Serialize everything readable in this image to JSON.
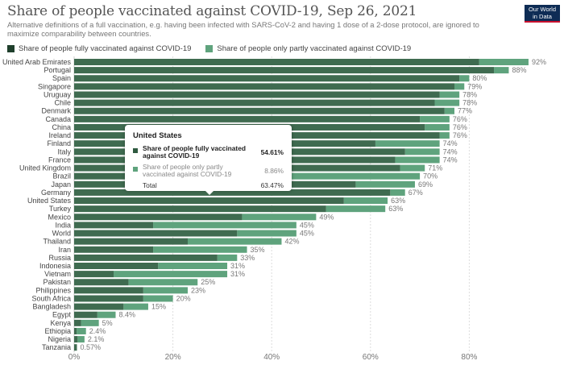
{
  "header": {
    "title": "Share of people vaccinated against COVID-19, Sep 26, 2021",
    "subtitle": "Alternative definitions of a full vaccination, e.g. having been infected with SARS-CoV-2 and having 1 dose of a 2-dose protocol, are ignored to maximize comparability between countries.",
    "logo_line1": "Our World",
    "logo_line2": "in Data"
  },
  "colors": {
    "fully": "#3f6b50",
    "partly": "#5fa37d",
    "logo_bg": "#0e2c55",
    "logo_accent": "#c8102e"
  },
  "tooltip": {
    "country": "United States",
    "rows": [
      {
        "label": "Share of people fully vaccinated against COVID-19",
        "value": "54.61%"
      },
      {
        "label": "Share of people only partly vaccinated against COVID-19",
        "value": "8.86%"
      }
    ],
    "total_label": "Total",
    "total_value": "63.47%"
  },
  "chart_data": {
    "type": "bar",
    "orientation": "horizontal",
    "stacked": true,
    "title": "Share of people vaccinated against COVID-19, Sep 26, 2021",
    "xlabel": "",
    "ylabel": "",
    "xlim": [
      0,
      92
    ],
    "x_ticks": [
      "0%",
      "20%",
      "40%",
      "60%",
      "80%"
    ],
    "x_tick_values": [
      0,
      20,
      40,
      60,
      80
    ],
    "grid": true,
    "legend_position": "top-left",
    "categories": [
      "United Arab Emirates",
      "Portugal",
      "Spain",
      "Singapore",
      "Uruguay",
      "Chile",
      "Denmark",
      "Canada",
      "China",
      "Ireland",
      "Finland",
      "Italy",
      "France",
      "United Kingdom",
      "Brazil",
      "Japan",
      "Germany",
      "United States",
      "Turkey",
      "Mexico",
      "India",
      "World",
      "Thailand",
      "Iran",
      "Russia",
      "Indonesia",
      "Vietnam",
      "Pakistan",
      "Philippines",
      "South Africa",
      "Bangladesh",
      "Egypt",
      "Kenya",
      "Ethiopia",
      "Nigeria",
      "Tanzania"
    ],
    "series": [
      {
        "name": "Share of people fully vaccinated against COVID-19",
        "values": [
          82,
          85,
          78,
          77,
          74,
          73,
          75,
          70,
          71,
          74,
          61,
          67,
          65,
          66,
          44,
          57,
          64,
          54.61,
          51,
          34,
          16,
          33,
          23,
          16,
          29,
          17,
          8,
          11,
          14,
          14,
          10,
          4.7,
          1.4,
          0.5,
          0.7,
          0.57
        ]
      },
      {
        "name": "Share of people only partly vaccinated against COVID-19",
        "values": [
          10,
          3,
          2,
          2,
          4,
          5,
          2,
          6,
          5,
          2,
          13,
          7,
          9,
          5,
          26,
          12,
          3,
          8.86,
          12,
          15,
          29,
          12,
          19,
          19,
          4,
          14,
          23,
          14,
          9,
          6,
          5,
          3.7,
          3.6,
          1.9,
          1.4,
          0
        ]
      }
    ],
    "totals_labels": [
      "92%",
      "88%",
      "80%",
      "79%",
      "78%",
      "78%",
      "77%",
      "76%",
      "76%",
      "76%",
      "74%",
      "74%",
      "74%",
      "71%",
      "70%",
      "69%",
      "67%",
      "63%",
      "63%",
      "49%",
      "45%",
      "45%",
      "42%",
      "35%",
      "33%",
      "31%",
      "31%",
      "25%",
      "23%",
      "20%",
      "15%",
      "8.4%",
      "5%",
      "2.4%",
      "2.1%",
      "0.57%"
    ]
  }
}
